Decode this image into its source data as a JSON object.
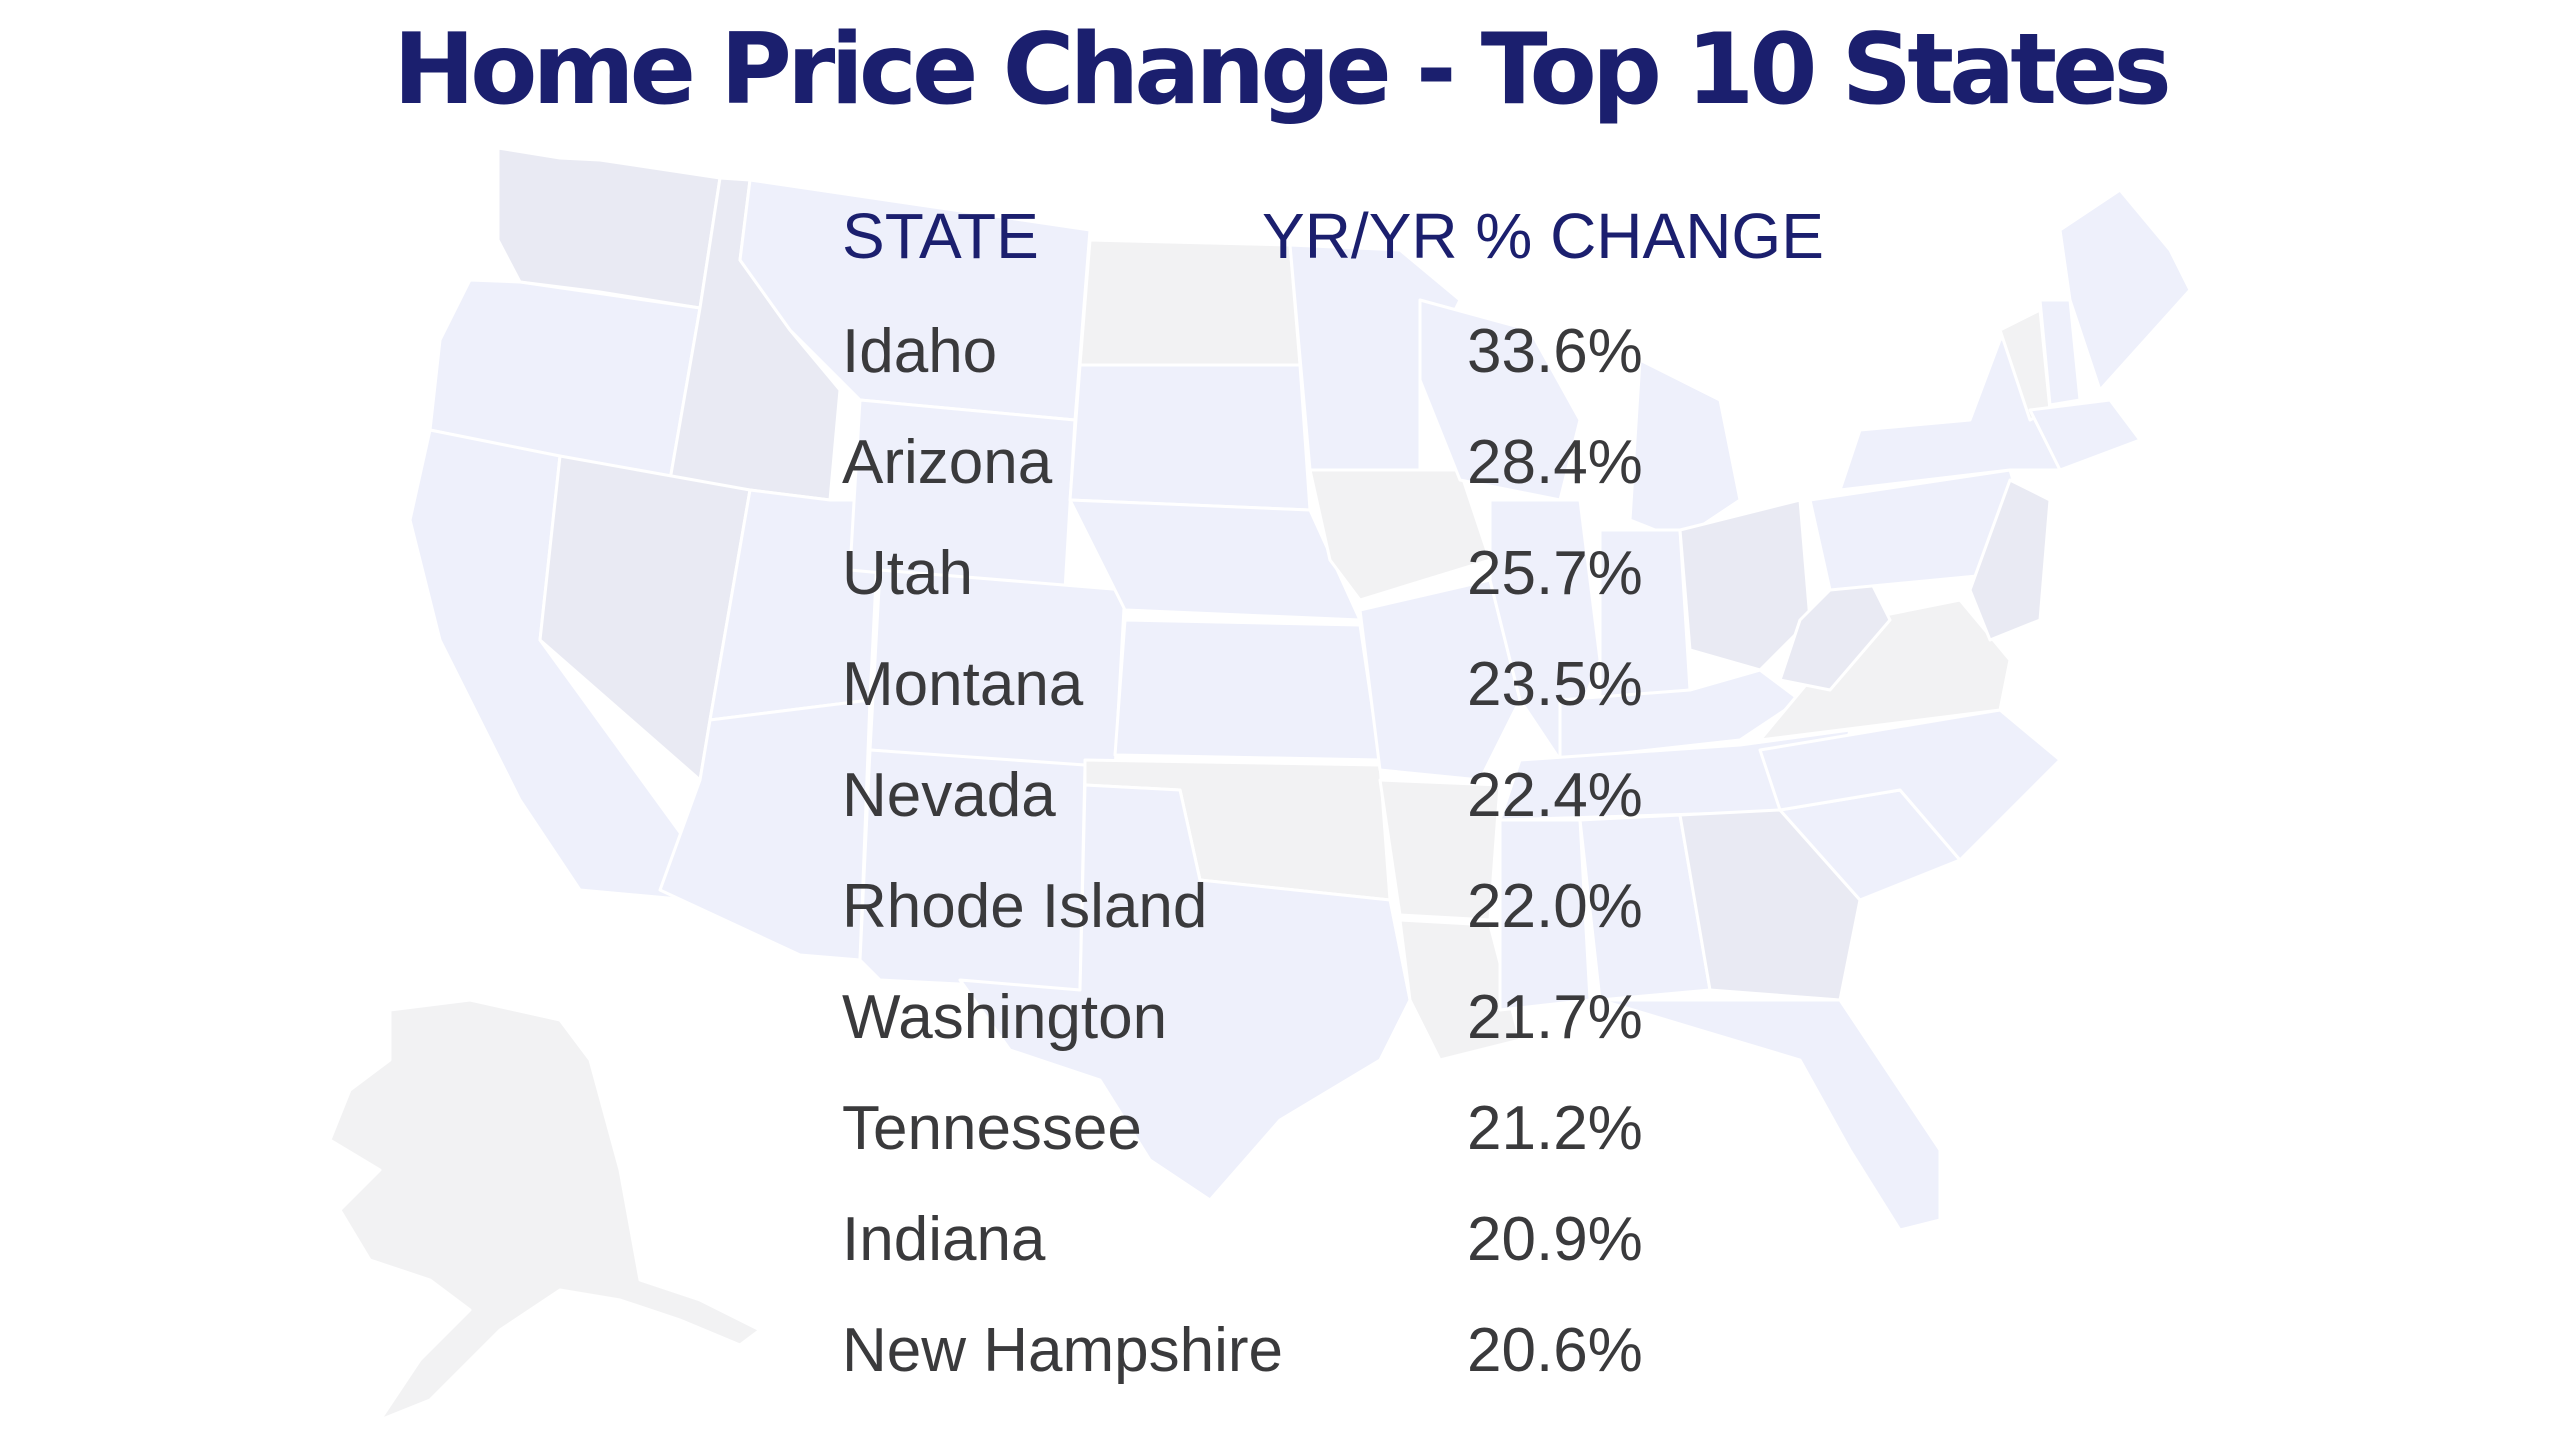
{
  "title": "Home Price Change - Top 10 States",
  "colors": {
    "title": "#1b1f6e",
    "header": "#1b1f6e",
    "body_text": "#3a3a3c",
    "map_fill_a": "#e9eaf3",
    "map_fill_b": "#eef0fb",
    "map_fill_c": "#f2f2f3",
    "map_border": "#ffffff"
  },
  "background_icon": "usa-map-icon",
  "chart_data": {
    "type": "table",
    "columns": [
      "STATE",
      "YR/YR % CHANGE"
    ],
    "rows": [
      {
        "state": "Idaho",
        "value": "33.6%"
      },
      {
        "state": "Arizona",
        "value": "28.4%"
      },
      {
        "state": "Utah",
        "value": "25.7%"
      },
      {
        "state": "Montana",
        "value": "23.5%"
      },
      {
        "state": "Nevada",
        "value": "22.4%"
      },
      {
        "state": "Rhode Island",
        "value": "22.0%"
      },
      {
        "state": "Washington",
        "value": "21.7%"
      },
      {
        "state": "Tennessee",
        "value": "21.2%"
      },
      {
        "state": "Indiana",
        "value": "20.9%"
      },
      {
        "state": "New Hampshire",
        "value": "20.6%"
      }
    ]
  }
}
